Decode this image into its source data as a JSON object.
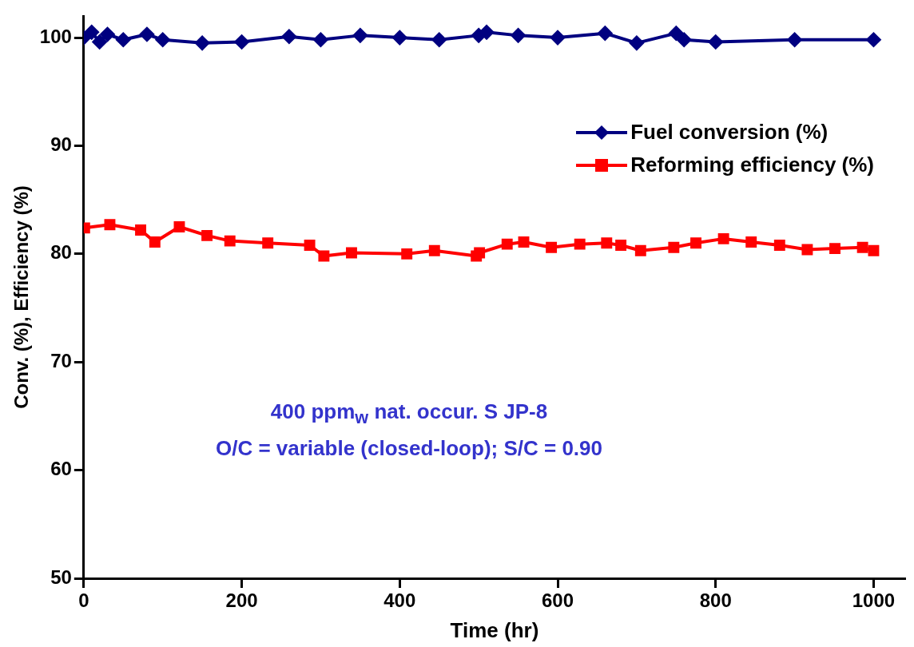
{
  "chart_data": {
    "type": "line",
    "xlabel": "Time (hr)",
    "ylabel": "Conv. (%), Efficiency (%)",
    "xlim": [
      0,
      1040
    ],
    "xticks": [
      0,
      200,
      400,
      600,
      800,
      1000
    ],
    "ylim": [
      50,
      102
    ],
    "yticks": [
      50,
      60,
      70,
      80,
      90,
      100
    ],
    "grid": false,
    "legend": "top right",
    "line_style": "solid",
    "annotations": [
      "400 ppm$_{w}$ nat. occur. S JP-8",
      "O/C = variable (closed-loop); S/C = 0.90"
    ],
    "series": [
      {
        "name": "Fuel conversion (%)",
        "color": "#000080",
        "marker": "diamond",
        "x": [
          0,
          10,
          20,
          30,
          50,
          80,
          100,
          150,
          200,
          260,
          300,
          350,
          400,
          450,
          500,
          510,
          550,
          600,
          660,
          700,
          750,
          760,
          800,
          900,
          1000
        ],
        "values": [
          100,
          100.5,
          99.6,
          100.3,
          99.8,
          100.3,
          99.8,
          99.5,
          99.6,
          100.1,
          99.8,
          100.2,
          100,
          99.8,
          100.2,
          100.5,
          100.2,
          100,
          100.4,
          99.5,
          100.4,
          99.8,
          99.6,
          99.8,
          99.8
        ]
      },
      {
        "name": "Reforming efficiency (%)",
        "color": "#ff0000",
        "marker": "square",
        "x": [
          1,
          33,
          72,
          90,
          121,
          156,
          185,
          233,
          286,
          304,
          339,
          409,
          444,
          497,
          501,
          536,
          557,
          592,
          628,
          662,
          680,
          705,
          747,
          775,
          810,
          845,
          881,
          916,
          951,
          986,
          1000
        ],
        "values": [
          82.4,
          82.7,
          82.2,
          81.1,
          82.5,
          81.7,
          81.2,
          81,
          80.8,
          79.8,
          80.1,
          80,
          80.3,
          79.8,
          80.1,
          80.9,
          81.1,
          80.6,
          80.9,
          81,
          80.8,
          80.3,
          80.6,
          81,
          81.4,
          81.1,
          80.8,
          80.4,
          80.5,
          80.6,
          80.3
        ]
      }
    ]
  }
}
